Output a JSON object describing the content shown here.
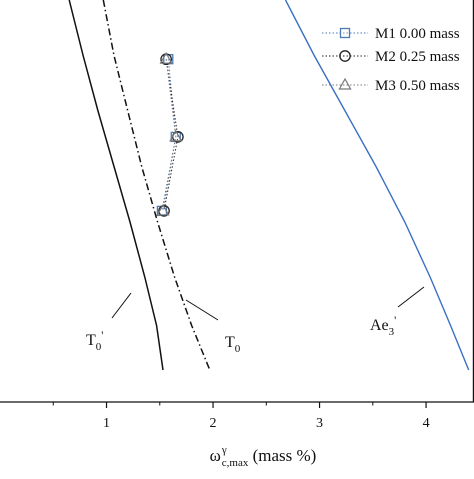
{
  "chart_data": {
    "type": "scatter",
    "title": "",
    "xlabel_main": "ω",
    "xlabel_sup": "γ",
    "xlabel_sub": "c,max",
    "xlabel_unit": " (mass %)",
    "xlim": [
      0.0,
      4.45
    ],
    "ylim": [
      0,
      100
    ],
    "xticks": [
      1,
      2,
      3,
      4
    ],
    "tick_labels": [
      "1",
      "2",
      "3",
      "4"
    ],
    "grid": false,
    "legend_position": "top-right",
    "series": [
      {
        "name": "M1 0.00 mass",
        "marker": "square",
        "color": "#4a7ab8",
        "points": [
          [
            1.58,
            84
          ],
          [
            1.65,
            63
          ],
          [
            1.52,
            43
          ]
        ]
      },
      {
        "name": "M2 0.25 mass",
        "marker": "circle",
        "color": "#222222",
        "points": [
          [
            1.56,
            84
          ],
          [
            1.67,
            63
          ],
          [
            1.54,
            43
          ]
        ]
      },
      {
        "name": "M3 0.50 mass",
        "marker": "triangle",
        "color": "#777777",
        "points": [
          [
            1.56,
            84
          ],
          [
            1.65,
            63
          ],
          [
            1.53,
            43
          ]
        ]
      }
    ],
    "curves": [
      {
        "name": "T0'",
        "label_main": "T",
        "label_sub": "0",
        "label_sup": "'",
        "style": "solid",
        "color": "#111111",
        "points": [
          [
            0.65,
            100
          ],
          [
            0.78,
            85
          ],
          [
            0.92,
            70
          ],
          [
            1.07,
            55
          ],
          [
            1.22,
            40
          ],
          [
            1.36,
            25
          ],
          [
            1.47,
            12
          ],
          [
            1.53,
            0
          ]
        ]
      },
      {
        "name": "T0",
        "label_main": "T",
        "label_sub": "0",
        "label_sup": "",
        "style": "dashdot",
        "color": "#111111",
        "points": [
          [
            0.97,
            100
          ],
          [
            1.07,
            85
          ],
          [
            1.2,
            70
          ],
          [
            1.33,
            55
          ],
          [
            1.48,
            40
          ],
          [
            1.64,
            25
          ],
          [
            1.8,
            12
          ],
          [
            1.97,
            0
          ]
        ]
      },
      {
        "name": "Ae'3",
        "label_main": "Ae",
        "label_sub": "3",
        "label_sup": "'",
        "style": "solid",
        "color": "#3b6fc4",
        "points": [
          [
            2.68,
            100
          ],
          [
            2.95,
            85
          ],
          [
            3.24,
            70
          ],
          [
            3.53,
            55
          ],
          [
            3.8,
            40
          ],
          [
            4.04,
            25
          ],
          [
            4.23,
            12
          ],
          [
            4.4,
            0
          ]
        ]
      }
    ]
  }
}
